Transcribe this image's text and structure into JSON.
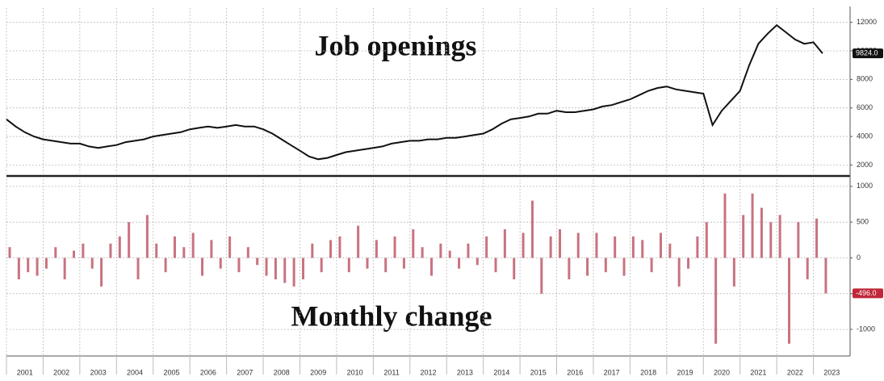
{
  "chart_data": [
    {
      "type": "line",
      "title": "Job openings",
      "color": "#111111",
      "grid": true,
      "xlim": [
        2001,
        2024
      ],
      "ylim": [
        1400,
        13000
      ],
      "yticks": [
        2000,
        4000,
        6000,
        8000,
        10000,
        12000
      ],
      "annotations": [
        {
          "value": 9824,
          "label": "9824.0"
        }
      ],
      "x": [
        2001,
        2001.25,
        2001.5,
        2001.75,
        2002,
        2002.25,
        2002.5,
        2002.75,
        2003,
        2003.25,
        2003.5,
        2003.75,
        2004,
        2004.25,
        2004.5,
        2004.75,
        2005,
        2005.25,
        2005.5,
        2005.75,
        2006,
        2006.25,
        2006.5,
        2006.75,
        2007,
        2007.25,
        2007.5,
        2007.75,
        2008,
        2008.25,
        2008.5,
        2008.75,
        2009,
        2009.25,
        2009.5,
        2009.75,
        2010,
        2010.25,
        2010.5,
        2010.75,
        2011,
        2011.25,
        2011.5,
        2011.75,
        2012,
        2012.25,
        2012.5,
        2012.75,
        2013,
        2013.25,
        2013.5,
        2013.75,
        2014,
        2014.25,
        2014.5,
        2014.75,
        2015,
        2015.25,
        2015.5,
        2015.75,
        2016,
        2016.25,
        2016.5,
        2016.75,
        2017,
        2017.25,
        2017.5,
        2017.75,
        2018,
        2018.25,
        2018.5,
        2018.75,
        2019,
        2019.25,
        2019.5,
        2019.75,
        2020,
        2020.25,
        2020.5,
        2020.75,
        2021,
        2021.25,
        2021.5,
        2021.75,
        2022,
        2022.25,
        2022.5,
        2022.75,
        2023,
        2023.25
      ],
      "values": [
        5200,
        4700,
        4300,
        4000,
        3800,
        3700,
        3600,
        3500,
        3500,
        3300,
        3200,
        3300,
        3400,
        3600,
        3700,
        3800,
        4000,
        4100,
        4200,
        4300,
        4500,
        4600,
        4700,
        4600,
        4700,
        4800,
        4700,
        4700,
        4500,
        4200,
        3800,
        3400,
        3000,
        2600,
        2400,
        2500,
        2700,
        2900,
        3000,
        3100,
        3200,
        3300,
        3500,
        3600,
        3700,
        3700,
        3800,
        3800,
        3900,
        3900,
        4000,
        4100,
        4200,
        4500,
        4900,
        5200,
        5300,
        5400,
        5600,
        5600,
        5800,
        5700,
        5700,
        5800,
        5900,
        6100,
        6200,
        6400,
        6600,
        6900,
        7200,
        7400,
        7500,
        7300,
        7200,
        7100,
        7000,
        4800,
        5800,
        6500,
        7200,
        9000,
        10500,
        11200,
        11800,
        11300,
        10800,
        10500,
        10600,
        9824
      ]
    },
    {
      "type": "bar",
      "title": "Monthly change",
      "color": "#c8737f",
      "grid": true,
      "xlim": [
        2001,
        2024
      ],
      "ylim": [
        -1360,
        1100
      ],
      "xticks": [
        {
          "value": 2001,
          "label": "2001"
        },
        {
          "value": 2002,
          "label": "2002"
        },
        {
          "value": 2003,
          "label": "2003"
        },
        {
          "value": 2004,
          "label": "2004"
        },
        {
          "value": 2005,
          "label": "2005"
        },
        {
          "value": 2006,
          "label": "2006"
        },
        {
          "value": 2007,
          "label": "2007"
        },
        {
          "value": 2008,
          "label": "2008"
        },
        {
          "value": 2009,
          "label": "2009"
        },
        {
          "value": 2010,
          "label": "2010"
        },
        {
          "value": 2011,
          "label": "2011"
        },
        {
          "value": 2012,
          "label": "2012"
        },
        {
          "value": 2013,
          "label": "2013"
        },
        {
          "value": 2014,
          "label": "2014"
        },
        {
          "value": 2015,
          "label": "2015"
        },
        {
          "value": 2016,
          "label": "2016"
        },
        {
          "value": 2017,
          "label": "2017"
        },
        {
          "value": 2018,
          "label": "2018"
        },
        {
          "value": 2019,
          "label": "2019"
        },
        {
          "value": 2020,
          "label": "2020"
        },
        {
          "value": 2021,
          "label": "2021"
        },
        {
          "value": 2022,
          "label": "2022"
        },
        {
          "value": 2023,
          "label": "2023"
        }
      ],
      "yticks": [
        -1000,
        -500,
        0,
        500,
        1000
      ],
      "annotations": [
        {
          "value": -496,
          "label": "-496.0"
        }
      ],
      "x": [
        2001,
        2001.25,
        2001.5,
        2001.75,
        2002,
        2002.25,
        2002.5,
        2002.75,
        2003,
        2003.25,
        2003.5,
        2003.75,
        2004,
        2004.25,
        2004.5,
        2004.75,
        2005,
        2005.25,
        2005.5,
        2005.75,
        2006,
        2006.25,
        2006.5,
        2006.75,
        2007,
        2007.25,
        2007.5,
        2007.75,
        2008,
        2008.25,
        2008.5,
        2008.75,
        2009,
        2009.25,
        2009.5,
        2009.75,
        2010,
        2010.25,
        2010.5,
        2010.75,
        2011,
        2011.25,
        2011.5,
        2011.75,
        2012,
        2012.25,
        2012.5,
        2012.75,
        2013,
        2013.25,
        2013.5,
        2013.75,
        2014,
        2014.25,
        2014.5,
        2014.75,
        2015,
        2015.25,
        2015.5,
        2015.75,
        2016,
        2016.25,
        2016.5,
        2016.75,
        2017,
        2017.25,
        2017.5,
        2017.75,
        2018,
        2018.25,
        2018.5,
        2018.75,
        2019,
        2019.25,
        2019.5,
        2019.75,
        2020,
        2020.25,
        2020.5,
        2020.75,
        2021,
        2021.25,
        2021.5,
        2021.75,
        2022,
        2022.25,
        2022.5,
        2022.75,
        2023,
        2023.25
      ],
      "values": [
        150,
        -300,
        -200,
        -250,
        -150,
        150,
        -300,
        100,
        200,
        -150,
        -400,
        200,
        300,
        500,
        -300,
        600,
        200,
        -200,
        300,
        150,
        350,
        -250,
        250,
        -150,
        300,
        -200,
        150,
        -100,
        -250,
        -300,
        -350,
        -400,
        -300,
        200,
        -200,
        250,
        300,
        -200,
        450,
        -150,
        250,
        -200,
        300,
        -150,
        400,
        150,
        -250,
        200,
        100,
        -150,
        200,
        -100,
        300,
        -200,
        400,
        -300,
        350,
        800,
        -500,
        300,
        400,
        -300,
        350,
        -250,
        350,
        -200,
        300,
        -250,
        300,
        250,
        -200,
        350,
        200,
        -400,
        -150,
        300,
        500,
        -1200,
        900,
        -400,
        600,
        900,
        700,
        500,
        600,
        -1200,
        500,
        -300,
        550,
        -496
      ]
    }
  ]
}
